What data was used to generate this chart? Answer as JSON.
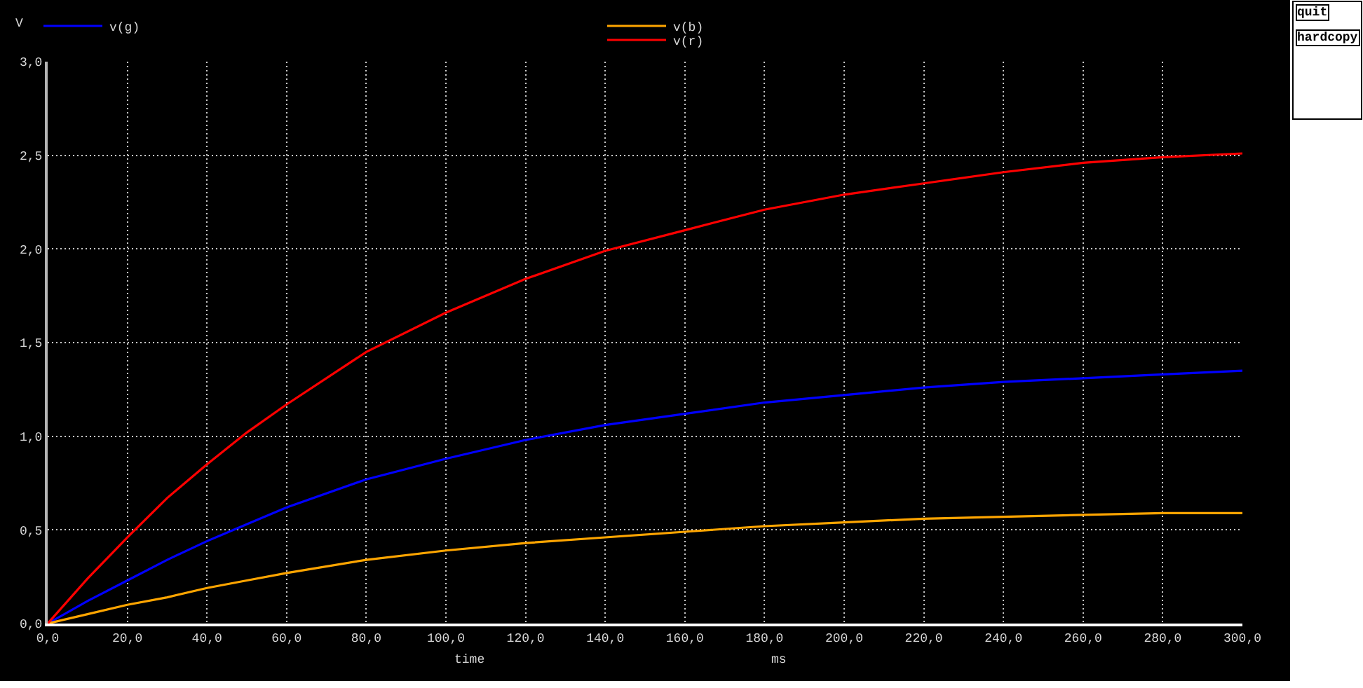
{
  "chart_data": {
    "type": "line",
    "xlabel": "time",
    "ylabel": "V",
    "annotations": [
      "ms",
      "quit",
      "hardcopy"
    ],
    "x": [
      0,
      10,
      20,
      30,
      40,
      50,
      60,
      80,
      100,
      120,
      140,
      160,
      180,
      200,
      220,
      240,
      260,
      280,
      300
    ],
    "series": [
      {
        "name": "v(g)",
        "color": "#0000ff",
        "values": [
          0,
          0.12,
          0.23,
          0.34,
          0.44,
          0.53,
          0.62,
          0.77,
          0.88,
          0.98,
          1.06,
          1.12,
          1.18,
          1.22,
          1.26,
          1.29,
          1.31,
          1.33,
          1.35
        ]
      },
      {
        "name": "v(b)",
        "color": "#ffa500",
        "values": [
          0,
          0.05,
          0.1,
          0.14,
          0.19,
          0.23,
          0.27,
          0.34,
          0.39,
          0.43,
          0.46,
          0.49,
          0.52,
          0.54,
          0.56,
          0.57,
          0.58,
          0.59,
          0.59
        ]
      },
      {
        "name": "v(r)",
        "color": "#ff0000",
        "values": [
          0,
          0.24,
          0.46,
          0.67,
          0.85,
          1.02,
          1.17,
          1.45,
          1.66,
          1.84,
          1.99,
          2.1,
          2.21,
          2.29,
          2.35,
          2.41,
          2.46,
          2.49,
          2.51
        ]
      }
    ],
    "xlim": [
      0,
      300
    ],
    "ylim": [
      0,
      3
    ],
    "xticks": [
      {
        "value": 0,
        "label": "0,0"
      },
      {
        "value": 20,
        "label": "20,0"
      },
      {
        "value": 40,
        "label": "40,0"
      },
      {
        "value": 60,
        "label": "60,0"
      },
      {
        "value": 80,
        "label": "80,0"
      },
      {
        "value": 100,
        "label": "100,0"
      },
      {
        "value": 120,
        "label": "120,0"
      },
      {
        "value": 140,
        "label": "140,0"
      },
      {
        "value": 160,
        "label": "160,0"
      },
      {
        "value": 180,
        "label": "180,0"
      },
      {
        "value": 200,
        "label": "200,0"
      },
      {
        "value": 220,
        "label": "220,0"
      },
      {
        "value": 240,
        "label": "240,0"
      },
      {
        "value": 260,
        "label": "260,0"
      },
      {
        "value": 280,
        "label": "280,0"
      },
      {
        "value": 300,
        "label": "300,0"
      }
    ],
    "yticks": [
      {
        "value": 0,
        "label": "0,0"
      },
      {
        "value": 0.5,
        "label": "0,5"
      },
      {
        "value": 1,
        "label": "1,0"
      },
      {
        "value": 1.5,
        "label": "1,5"
      },
      {
        "value": 2,
        "label": "2,0"
      },
      {
        "value": 2.5,
        "label": "2,5"
      },
      {
        "value": 3,
        "label": "3,0"
      }
    ],
    "grid": true,
    "legend": "top",
    "line_style": "solid"
  }
}
